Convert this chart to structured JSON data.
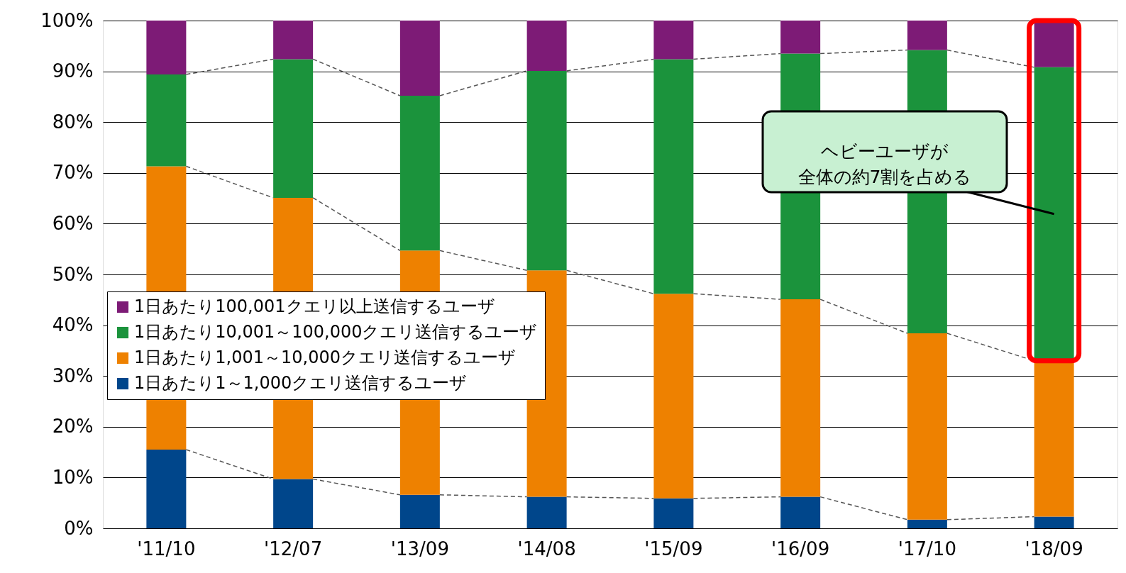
{
  "chart_data": {
    "type": "bar",
    "stacked": true,
    "categories": [
      "'11/10",
      "'12/07",
      "'13/09",
      "'14/08",
      "'15/09",
      "'16/09",
      "'17/10",
      "'18/09"
    ],
    "series": [
      {
        "name": "1日あたり1～1,000クエリ送信するユーザ",
        "color": "#00468b",
        "values": [
          15.5,
          9.7,
          6.6,
          6.2,
          5.9,
          6.2,
          1.7,
          2.3
        ]
      },
      {
        "name": "1日あたり1,001～10,000クエリ送信するユーザ",
        "color": "#ee8100",
        "values": [
          55.8,
          55.4,
          48.1,
          44.6,
          40.3,
          38.9,
          36.7,
          30.7
        ]
      },
      {
        "name": "1日あたり10,001～100,000クエリ送信するユーザ",
        "color": "#1b933c",
        "values": [
          18.1,
          27.3,
          30.5,
          39.3,
          46.2,
          48.4,
          55.8,
          57.8
        ]
      },
      {
        "name": "1日あたり100,001クエリ以上送信するユーザ",
        "color": "#7d1b76",
        "values": [
          10.6,
          7.6,
          14.8,
          9.9,
          7.6,
          6.5,
          5.8,
          9.2
        ]
      }
    ],
    "ylim": [
      0,
      100
    ],
    "yticks": [
      {
        "value": 0,
        "label": "0%"
      },
      {
        "value": 10,
        "label": "10%"
      },
      {
        "value": 20,
        "label": "20%"
      },
      {
        "value": 30,
        "label": "30%"
      },
      {
        "value": 40,
        "label": "40%"
      },
      {
        "value": 50,
        "label": "50%"
      },
      {
        "value": 60,
        "label": "60%"
      },
      {
        "value": 70,
        "label": "70%"
      },
      {
        "value": 80,
        "label": "80%"
      },
      {
        "value": 90,
        "label": "90%"
      },
      {
        "value": 100,
        "label": "100%"
      }
    ],
    "grid": "y",
    "legend": "left",
    "annotations": [
      "ヘビーユーザが全体の約7割を占める"
    ]
  }
}
